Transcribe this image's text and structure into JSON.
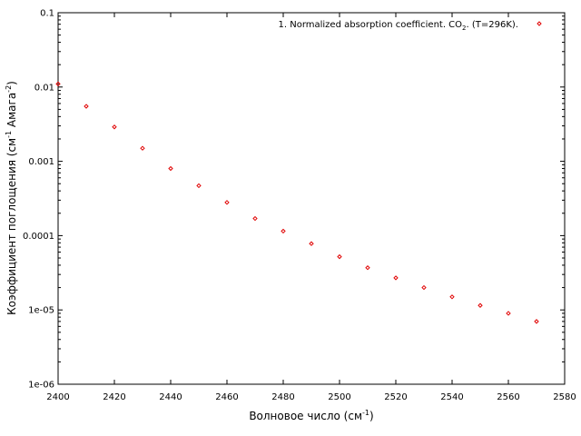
{
  "chart_data": {
    "type": "scatter",
    "title": "",
    "xlabel": {
      "main": "Волновое число (см",
      "sup": "-1",
      "tail": ")"
    },
    "ylabel": {
      "main": "Коэффициент поглощения (см",
      "sup1": "-1",
      "mid": " Амага",
      "sup2": "-2",
      "tail": ")"
    },
    "xlim": [
      2400,
      2580
    ],
    "ylim": [
      1e-06,
      0.1
    ],
    "yscale": "log",
    "grid": false,
    "legend_position": "top-right",
    "xticks": [
      {
        "value": 2400,
        "label": "2400"
      },
      {
        "value": 2420,
        "label": "2420"
      },
      {
        "value": 2440,
        "label": "2440"
      },
      {
        "value": 2460,
        "label": "2460"
      },
      {
        "value": 2480,
        "label": "2480"
      },
      {
        "value": 2500,
        "label": "2500"
      },
      {
        "value": 2520,
        "label": "2520"
      },
      {
        "value": 2540,
        "label": "2540"
      },
      {
        "value": 2560,
        "label": "2560"
      },
      {
        "value": 2580,
        "label": "2580"
      }
    ],
    "yticks": [
      {
        "value": 1e-06,
        "label": "1e-06"
      },
      {
        "value": 1e-05,
        "label": "1e-05"
      },
      {
        "value": 0.0001,
        "label": "0.0001"
      },
      {
        "value": 0.001,
        "label": "0.001"
      },
      {
        "value": 0.01,
        "label": "0.01"
      },
      {
        "value": 0.1,
        "label": "0.1"
      }
    ],
    "series": [
      {
        "name": {
          "pre": "1. Normalized absorption coefficient. CO",
          "sub": "2",
          "post": ". (T=296K)."
        },
        "color": "#e00000",
        "marker": "diamond",
        "x": [
          2400,
          2410,
          2420,
          2430,
          2440,
          2450,
          2460,
          2470,
          2480,
          2490,
          2500,
          2510,
          2520,
          2530,
          2540,
          2550,
          2560,
          2570
        ],
        "y": [
          0.011,
          0.0055,
          0.0029,
          0.0015,
          0.0008,
          0.00047,
          0.00028,
          0.00017,
          0.000115,
          7.8e-05,
          5.2e-05,
          3.7e-05,
          2.7e-05,
          2e-05,
          1.5e-05,
          1.15e-05,
          9e-06,
          7e-06
        ]
      }
    ]
  }
}
